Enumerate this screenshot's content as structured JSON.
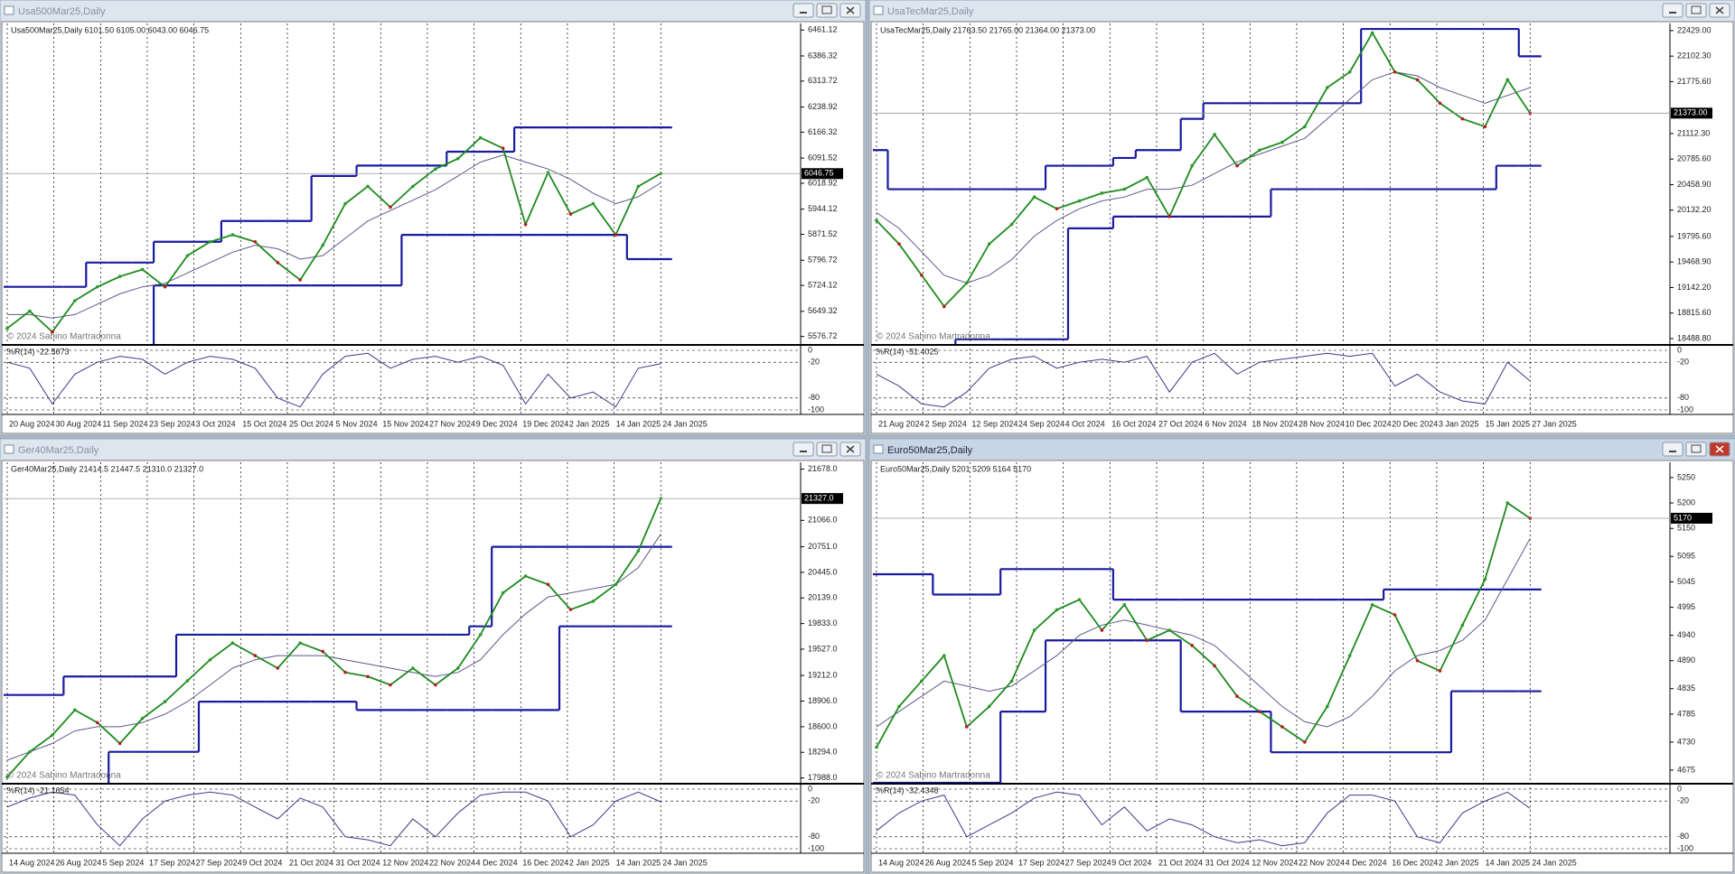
{
  "windows": [
    {
      "title": "Usa500Mar25,Daily",
      "info": "Usa500Mar25,Daily  6101.50 6105.00 6043.00 6046.75",
      "copyright": "© 2024 Sabino Martradonna",
      "indicator": "%R(14) -22.5673",
      "ylim": [
        5555,
        6480
      ],
      "yticks": [
        6461.12,
        6386.32,
        6313.72,
        6238.92,
        6166.32,
        6091.52,
        6018.92,
        5944.12,
        5871.52,
        5796.72,
        5724.12,
        5649.32,
        5576.72
      ],
      "current": 6046.75,
      "wpr_ylim": [
        -100,
        0
      ],
      "wpr_ticks": [
        0,
        -20,
        -80,
        -100
      ],
      "dates": [
        "20 Aug 2024",
        "30 Aug 2024",
        "11 Sep 2024",
        "23 Sep 2024",
        "3 Oct 2024",
        "15 Oct 2024",
        "25 Oct 2024",
        "5 Nov 2024",
        "15 Nov 2024",
        "27 Nov 2024",
        "9 Dec 2024",
        "19 Dec 2024",
        "2 Jan 2025",
        "14 Jan 2025",
        "24 Jan 2025"
      ],
      "close": [
        5600,
        5650,
        5590,
        5680,
        5720,
        5750,
        5770,
        5720,
        5810,
        5850,
        5870,
        5850,
        5790,
        5740,
        5840,
        5960,
        6010,
        5950,
        6010,
        6060,
        6090,
        6150,
        6120,
        5900,
        6050,
        5930,
        5960,
        5870,
        6010,
        6047
      ],
      "upper": [
        5720,
        5720,
        5720,
        5720,
        5790,
        5790,
        5790,
        5850,
        5850,
        5850,
        5910,
        5910,
        5910,
        5910,
        6040,
        6040,
        6070,
        6070,
        6070,
        6070,
        6110,
        6110,
        6110,
        6180,
        6180,
        6180,
        6180,
        6180,
        6180,
        6180
      ],
      "lower": [
        5540,
        5540,
        5540,
        5540,
        5540,
        5540,
        5540,
        5724,
        5724,
        5724,
        5724,
        5724,
        5724,
        5724,
        5724,
        5724,
        5724,
        5724,
        5870,
        5870,
        5870,
        5870,
        5870,
        5870,
        5870,
        5870,
        5870,
        5870,
        5800,
        5800
      ],
      "ma": [
        5640,
        5640,
        5630,
        5640,
        5670,
        5700,
        5720,
        5730,
        5760,
        5790,
        5820,
        5840,
        5830,
        5800,
        5810,
        5860,
        5910,
        5940,
        5970,
        6000,
        6040,
        6080,
        6100,
        6080,
        6060,
        6030,
        5990,
        5960,
        5980,
        6020
      ],
      "wpr": [
        -20,
        -30,
        -90,
        -40,
        -20,
        -10,
        -15,
        -40,
        -20,
        -10,
        -15,
        -30,
        -80,
        -95,
        -40,
        -10,
        -5,
        -30,
        -15,
        -10,
        -20,
        -10,
        -25,
        -90,
        -40,
        -80,
        -70,
        -95,
        -30,
        -22.57
      ]
    },
    {
      "title": "UsaTecMar25,Daily",
      "info": "UsaTecMar25,Daily  21763.50 21765.00 21364.00 21373.00",
      "copyright": "© 2024 Sabino Martradonna",
      "indicator": "%R(14) -51.4025",
      "ylim": [
        18420,
        22520
      ],
      "yticks": [
        {
          "value": 22429,
          "label": "22429.00"
        },
        {
          "value": 22102.3,
          "label": "22102.30"
        },
        {
          "value": 21775.6,
          "label": "21775.60"
        },
        {
          "value": 21112.3,
          "label": "21112.30"
        },
        {
          "value": 20785.6,
          "label": "20785.60"
        },
        {
          "value": 20458.9,
          "label": "20458.90"
        },
        {
          "value": 20132.2,
          "label": "20132.20"
        },
        {
          "value": 19795.6,
          "label": "19795.60"
        },
        {
          "value": 19468.9,
          "label": "19468.90"
        },
        {
          "value": 19142.2,
          "label": "19142.20"
        },
        {
          "value": 18815.6,
          "label": "18815.60"
        },
        {
          "value": 18488.8,
          "label": "18488.80"
        }
      ],
      "current": {
        "value": 21373,
        "label": "21373.00"
      },
      "wpr_ylim": [
        -100,
        0
      ],
      "wpr_ticks": [
        0,
        -20,
        -80,
        -100
      ],
      "dates": [
        "21 Aug 2024",
        "2 Sep 2024",
        "12 Sep 2024",
        "24 Sep 2024",
        "4 Oct 2024",
        "16 Oct 2024",
        "27 Oct 2024",
        "6 Nov 2024",
        "18 Nov 2024",
        "28 Nov 2024",
        "10 Dec 2024",
        "20 Dec 2024",
        "3 Jan 2025",
        "15 Jan 2025",
        "27 Jan 2025"
      ],
      "close": [
        20000,
        19700,
        19300,
        18900,
        19200,
        19700,
        19950,
        20300,
        20150,
        20250,
        20350,
        20400,
        20550,
        20050,
        20700,
        21100,
        20700,
        20900,
        21000,
        21200,
        21700,
        21900,
        22400,
        21900,
        21800,
        21500,
        21300,
        21200,
        21800,
        21373
      ],
      "upper": [
        20900,
        20400,
        20400,
        20400,
        20400,
        20400,
        20400,
        20400,
        20700,
        20700,
        20700,
        20800,
        20900,
        20900,
        21300,
        21500,
        21500,
        21500,
        21500,
        21500,
        21500,
        21500,
        22450,
        22450,
        22450,
        22450,
        22450,
        22450,
        22450,
        22100
      ],
      "lower": [
        18400,
        18400,
        18400,
        18400,
        18480,
        18480,
        18480,
        18480,
        18480,
        19900,
        19900,
        20050,
        20050,
        20050,
        20050,
        20050,
        20050,
        20050,
        20400,
        20400,
        20400,
        20400,
        20400,
        20400,
        20400,
        20400,
        20400,
        20400,
        20700,
        20700
      ],
      "ma": [
        20100,
        19900,
        19600,
        19300,
        19200,
        19300,
        19500,
        19800,
        20000,
        20150,
        20250,
        20300,
        20400,
        20400,
        20450,
        20600,
        20750,
        20850,
        20950,
        21050,
        21300,
        21550,
        21800,
        21900,
        21850,
        21700,
        21600,
        21500,
        21600,
        21700
      ],
      "wpr": [
        -40,
        -60,
        -90,
        -95,
        -70,
        -30,
        -15,
        -10,
        -30,
        -20,
        -15,
        -20,
        -10,
        -70,
        -20,
        -5,
        -40,
        -20,
        -15,
        -10,
        -5,
        -10,
        -5,
        -60,
        -40,
        -70,
        -85,
        -90,
        -20,
        -51.4
      ]
    },
    {
      "title": "Ger40Mar25,Daily",
      "info": "Ger40Mar25,Daily  21414.5 21447.5 21310.0 21327.0",
      "copyright": "© 2024 Sabino Martradonna",
      "indicator": "%R(14) -21.1654",
      "ylim": [
        17930,
        21760
      ],
      "yticks": [
        {
          "value": 21678,
          "label": "21678.0"
        },
        {
          "value": 21066,
          "label": "21066.0"
        },
        {
          "value": 20751,
          "label": "20751.0"
        },
        {
          "value": 20445,
          "label": "20445.0"
        },
        {
          "value": 20139,
          "label": "20139.0"
        },
        {
          "value": 19833,
          "label": "19833.0"
        },
        {
          "value": 19527,
          "label": "19527.0"
        },
        {
          "value": 19212,
          "label": "19212.0"
        },
        {
          "value": 18906,
          "label": "18906.0"
        },
        {
          "value": 18600,
          "label": "18600.0"
        },
        {
          "value": 18294,
          "label": "18294.0"
        },
        {
          "value": 17988,
          "label": "17988.0"
        }
      ],
      "current": {
        "value": 21327,
        "label": "21327.0"
      },
      "wpr_ylim": [
        -100,
        0
      ],
      "wpr_ticks": [
        0,
        -20,
        -80,
        -100
      ],
      "dates": [
        "14 Aug 2024",
        "26 Aug 2024",
        "5 Sep 2024",
        "17 Sep 2024",
        "27 Sep 2024",
        "9 Oct 2024",
        "21 Oct 2024",
        "31 Oct 2024",
        "12 Nov 2024",
        "22 Nov 2024",
        "4 Dec 2024",
        "16 Dec 2024",
        "2 Jan 2025",
        "14 Jan 2025",
        "24 Jan 2025"
      ],
      "close": [
        18000,
        18300,
        18500,
        18800,
        18650,
        18400,
        18700,
        18900,
        19150,
        19400,
        19600,
        19450,
        19300,
        19600,
        19500,
        19250,
        19200,
        19100,
        19300,
        19100,
        19300,
        19700,
        20200,
        20400,
        20300,
        20000,
        20100,
        20300,
        20700,
        21327
      ],
      "upper": [
        18980,
        18980,
        18980,
        19200,
        19200,
        19200,
        19200,
        19200,
        19700,
        19700,
        19700,
        19700,
        19700,
        19700,
        19700,
        19700,
        19700,
        19700,
        19700,
        19700,
        19700,
        19800,
        20750,
        20750,
        20750,
        20750,
        20750,
        20750,
        20750,
        20750
      ],
      "lower": [
        17900,
        17900,
        17900,
        17900,
        17900,
        18300,
        18300,
        18300,
        18300,
        18900,
        18900,
        18900,
        18900,
        18900,
        18900,
        18900,
        18800,
        18800,
        18800,
        18800,
        18800,
        18800,
        18800,
        18800,
        18800,
        19800,
        19800,
        19800,
        19800,
        19800
      ],
      "ma": [
        18200,
        18300,
        18400,
        18550,
        18600,
        18600,
        18650,
        18750,
        18900,
        19100,
        19300,
        19400,
        19450,
        19450,
        19450,
        19400,
        19350,
        19300,
        19250,
        19200,
        19250,
        19400,
        19700,
        19950,
        20150,
        20200,
        20250,
        20300,
        20500,
        20900
      ],
      "wpr": [
        -30,
        -15,
        -5,
        -10,
        -60,
        -95,
        -50,
        -20,
        -10,
        -5,
        -10,
        -30,
        -50,
        -15,
        -30,
        -80,
        -85,
        -95,
        -50,
        -80,
        -40,
        -10,
        -5,
        -5,
        -20,
        -80,
        -60,
        -20,
        -5,
        -21.17
      ]
    },
    {
      "title": "Euro50Mar25,Daily",
      "active": true,
      "info": "Euro50Mar25,Daily  5201 5209 5164 5170",
      "copyright": "© 2024 Sabino Martradonna",
      "indicator": "%R(14) -32.4348",
      "ylim": [
        4650,
        5280
      ],
      "yticks": [
        5250,
        5200,
        5150,
        5095,
        5045,
        4995,
        4940,
        4890,
        4835,
        4785,
        4730,
        4675
      ],
      "current": 5170,
      "wpr_ylim": [
        -100,
        0
      ],
      "wpr_ticks": [
        0,
        -20,
        -80,
        -100
      ],
      "dates": [
        "14 Aug 2024",
        "26 Aug 2024",
        "5 Sep 2024",
        "17 Sep 2024",
        "27 Sep 2024",
        "9 Oct 2024",
        "21 Oct 2024",
        "31 Oct 2024",
        "12 Nov 2024",
        "22 Nov 2024",
        "4 Dec 2024",
        "16 Dec 2024",
        "2 Jan 2025",
        "14 Jan 2025",
        "24 Jan 2025"
      ],
      "close": [
        4720,
        4800,
        4850,
        4900,
        4760,
        4800,
        4850,
        4950,
        4990,
        5010,
        4950,
        5000,
        4930,
        4950,
        4920,
        4880,
        4820,
        4790,
        4760,
        4730,
        4800,
        4900,
        5000,
        4980,
        4890,
        4870,
        4960,
        5050,
        5200,
        5170
      ],
      "upper": [
        5060,
        5060,
        5060,
        5020,
        5020,
        5020,
        5070,
        5070,
        5070,
        5070,
        5070,
        5010,
        5010,
        5010,
        5010,
        5010,
        5010,
        5010,
        5010,
        5010,
        5010,
        5010,
        5010,
        5030,
        5030,
        5030,
        5030,
        5030,
        5030,
        5030
      ],
      "lower": [
        4650,
        4650,
        4650,
        4650,
        4650,
        4650,
        4790,
        4790,
        4930,
        4930,
        4930,
        4930,
        4930,
        4930,
        4790,
        4790,
        4790,
        4790,
        4710,
        4710,
        4710,
        4710,
        4710,
        4710,
        4710,
        4710,
        4830,
        4830,
        4830,
        4830
      ],
      "ma": [
        4760,
        4790,
        4820,
        4850,
        4840,
        4830,
        4840,
        4870,
        4900,
        4940,
        4960,
        4970,
        4960,
        4950,
        4940,
        4920,
        4880,
        4840,
        4800,
        4770,
        4760,
        4780,
        4820,
        4870,
        4900,
        4910,
        4930,
        4970,
        5050,
        5130
      ],
      "wpr": [
        -70,
        -40,
        -20,
        -10,
        -80,
        -60,
        -40,
        -15,
        -5,
        -10,
        -60,
        -30,
        -70,
        -50,
        -60,
        -80,
        -90,
        -85,
        -95,
        -90,
        -40,
        -10,
        -10,
        -20,
        -80,
        -90,
        -40,
        -20,
        -5,
        -32.43
      ]
    }
  ]
}
